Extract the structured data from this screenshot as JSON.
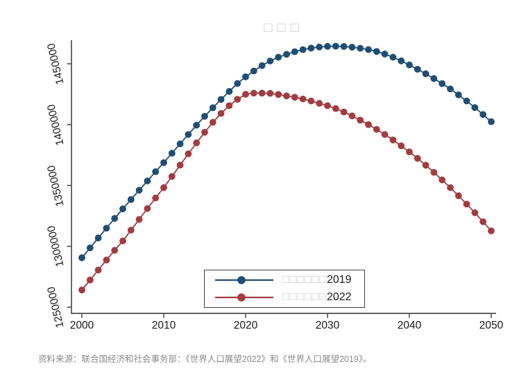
{
  "title": {
    "text": "□□□"
  },
  "caption": {
    "text": "资料来源：联合国经济和社会事务部：《世界人口展望2022》和《世界人口展望2019》。"
  },
  "legend": {
    "items": [
      {
        "glyphs": "□□□□□□",
        "year": "2019"
      },
      {
        "glyphs": "□□□□□□",
        "year": "2022"
      }
    ]
  },
  "colors": {
    "series_2019": "#1f4e74",
    "series_2022": "#a23c40",
    "axis": "#4d4d4d",
    "tick_label": "#1a1a1a",
    "missing_glyph": "#c9ccd0",
    "caption": "#8a8a8a"
  },
  "chart_data": {
    "type": "line",
    "title": "□□□",
    "xlabel": "",
    "ylabel": "",
    "grid": false,
    "marker": "circle",
    "legend_position": "inside-bottom-center",
    "x_ticks": [
      2000,
      2010,
      2020,
      2030,
      2040,
      2050
    ],
    "y_ticks": [
      1250000,
      1300000,
      1350000,
      1400000,
      1450000
    ],
    "xlim": [
      1998.7,
      2050.6
    ],
    "ylim": [
      1244900,
      1469400
    ],
    "x": [
      2000,
      2001,
      2002,
      2003,
      2004,
      2005,
      2006,
      2007,
      2008,
      2009,
      2010,
      2011,
      2012,
      2013,
      2014,
      2015,
      2016,
      2017,
      2018,
      2019,
      2020,
      2021,
      2022,
      2023,
      2024,
      2025,
      2026,
      2027,
      2028,
      2029,
      2030,
      2031,
      2032,
      2033,
      2034,
      2035,
      2036,
      2037,
      2038,
      2039,
      2040,
      2041,
      2042,
      2043,
      2044,
      2045,
      2046,
      2047,
      2048,
      2049,
      2050
    ],
    "series": [
      {
        "label": "□□□□□□2019",
        "color": "#1f4e74",
        "values": [
          1290551,
          1298700,
          1306800,
          1314900,
          1322900,
          1330776,
          1338450,
          1346100,
          1353700,
          1361300,
          1368811,
          1376500,
          1384200,
          1391900,
          1399500,
          1406848,
          1413900,
          1420700,
          1427300,
          1433784,
          1439324,
          1444100,
          1448500,
          1452300,
          1455400,
          1457797,
          1459900,
          1461600,
          1462900,
          1463800,
          1464340,
          1464450,
          1464250,
          1463650,
          1462750,
          1461684,
          1460100,
          1458000,
          1455400,
          1452400,
          1449031,
          1445500,
          1441800,
          1437850,
          1433700,
          1429324,
          1424500,
          1419400,
          1414000,
          1408300,
          1402405
        ]
      },
      {
        "label": "□□□□□□2022",
        "color": "#a23c40",
        "values": [
          1264099,
          1272300,
          1280500,
          1288700,
          1296700,
          1304400,
          1313300,
          1322100,
          1331000,
          1339700,
          1348191,
          1357400,
          1366700,
          1376000,
          1385000,
          1393715,
          1401900,
          1409200,
          1415600,
          1420800,
          1424930,
          1425893,
          1425887,
          1425671,
          1424800,
          1423600,
          1422500,
          1421100,
          1419400,
          1417500,
          1415606,
          1413200,
          1410400,
          1407200,
          1403700,
          1400000,
          1396100,
          1391900,
          1387400,
          1382600,
          1377557,
          1372250,
          1366650,
          1360750,
          1354550,
          1348220,
          1341600,
          1334700,
          1327600,
          1320200,
          1312636
        ]
      }
    ]
  }
}
